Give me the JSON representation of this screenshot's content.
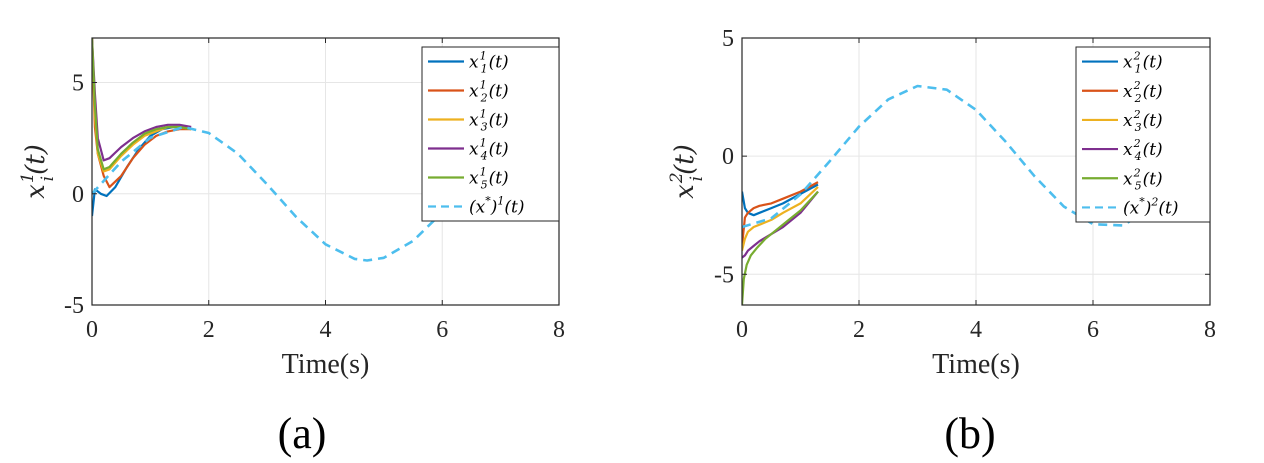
{
  "chart_data": [
    {
      "type": "line",
      "panel_label": "(a)",
      "xlabel": "Time(s)",
      "ylabel": {
        "base": "x",
        "sub": "i",
        "sup": "1",
        "arg": "(t)"
      },
      "xlim": [
        0,
        8
      ],
      "ylim": [
        -5,
        7
      ],
      "xticks": [
        "0",
        "2",
        "4",
        "6",
        "8"
      ],
      "yticks": [
        "-5",
        "0",
        "5"
      ],
      "grid": true,
      "legend_position": "top-right",
      "series": [
        {
          "name": "x_1^1(t)",
          "label": {
            "base": "x",
            "sub": "1",
            "sup": "1",
            "arg": "(t)"
          },
          "color": "#0072BD",
          "style": "solid",
          "x": [
            0,
            0.05,
            0.15,
            0.25,
            0.4,
            0.6,
            0.8,
            1.0,
            1.2,
            1.4,
            1.6
          ],
          "y": [
            -1.0,
            0.2,
            0.0,
            -0.1,
            0.3,
            1.2,
            2.0,
            2.6,
            2.9,
            3.0,
            3.0
          ]
        },
        {
          "name": "x_2^1(t)",
          "label": {
            "base": "x",
            "sub": "2",
            "sup": "1",
            "arg": "(t)"
          },
          "color": "#D95319",
          "style": "solid",
          "x": [
            0,
            0.05,
            0.1,
            0.2,
            0.3,
            0.5,
            0.7,
            0.9,
            1.1,
            1.3,
            1.5,
            1.7
          ],
          "y": [
            7.0,
            3.0,
            1.8,
            0.8,
            0.3,
            0.8,
            1.6,
            2.2,
            2.6,
            2.8,
            2.9,
            2.9
          ]
        },
        {
          "name": "x_3^1(t)",
          "label": {
            "base": "x",
            "sub": "3",
            "sup": "1",
            "arg": "(t)"
          },
          "color": "#EDB120",
          "style": "solid",
          "x": [
            0,
            0.05,
            0.1,
            0.2,
            0.3,
            0.5,
            0.7,
            0.9,
            1.1,
            1.3,
            1.5,
            1.7
          ],
          "y": [
            7.0,
            3.5,
            1.8,
            1.0,
            1.1,
            1.7,
            2.2,
            2.6,
            2.8,
            3.0,
            3.0,
            2.9
          ]
        },
        {
          "name": "x_4^1(t)",
          "label": {
            "base": "x",
            "sub": "4",
            "sup": "1",
            "arg": "(t)"
          },
          "color": "#7E2F8E",
          "style": "solid",
          "x": [
            0,
            0.05,
            0.1,
            0.2,
            0.3,
            0.5,
            0.7,
            0.9,
            1.1,
            1.3,
            1.5,
            1.7
          ],
          "y": [
            7.0,
            4.5,
            2.5,
            1.5,
            1.6,
            2.1,
            2.5,
            2.8,
            3.0,
            3.1,
            3.1,
            3.0
          ]
        },
        {
          "name": "x_5^1(t)",
          "label": {
            "base": "x",
            "sub": "5",
            "sup": "1",
            "arg": "(t)"
          },
          "color": "#77AC30",
          "style": "solid",
          "x": [
            0,
            0.05,
            0.1,
            0.2,
            0.3,
            0.5,
            0.7,
            0.9,
            1.1,
            1.3,
            1.5,
            1.7
          ],
          "y": [
            7.0,
            4.0,
            2.0,
            1.1,
            1.2,
            1.8,
            2.3,
            2.7,
            2.9,
            3.0,
            3.0,
            2.9
          ]
        },
        {
          "name": "(x*)^1(t)",
          "label": {
            "base": "(x",
            "sup": "*",
            "after": ")",
            "sup2": "1",
            "arg": "(t)"
          },
          "color": "#4DBEEE",
          "style": "dashed",
          "x": [
            0,
            0.5,
            1.0,
            1.571,
            2.0,
            2.5,
            3.0,
            3.5,
            4.0,
            4.5,
            4.712,
            5.0,
            5.5,
            6.0,
            6.5,
            7.0,
            7.5,
            7.854,
            8.0
          ],
          "y": [
            0,
            1.44,
            2.52,
            3.0,
            2.73,
            1.8,
            0.42,
            -1.05,
            -2.27,
            -2.93,
            -3.0,
            -2.88,
            -2.12,
            -0.84,
            0.64,
            1.97,
            2.81,
            3.0,
            2.97
          ]
        }
      ]
    },
    {
      "type": "line",
      "panel_label": "(b)",
      "xlabel": "Time(s)",
      "ylabel": {
        "base": "x",
        "sub": "i",
        "sup": "2",
        "arg": "(t)"
      },
      "xlim": [
        0,
        8
      ],
      "ylim": [
        -6.3,
        5
      ],
      "xticks": [
        "0",
        "2",
        "4",
        "6",
        "8"
      ],
      "yticks": [
        "-5",
        "0",
        "5"
      ],
      "grid": true,
      "legend_position": "top-right",
      "series": [
        {
          "name": "x_1^2(t)",
          "label": {
            "base": "x",
            "sub": "1",
            "sup": "2",
            "arg": "(t)"
          },
          "color": "#0072BD",
          "style": "solid",
          "x": [
            0,
            0.05,
            0.1,
            0.2,
            0.3,
            0.5,
            0.7,
            1.0,
            1.3
          ],
          "y": [
            -1.5,
            -2.2,
            -2.4,
            -2.5,
            -2.4,
            -2.2,
            -2.0,
            -1.6,
            -1.2
          ]
        },
        {
          "name": "x_2^2(t)",
          "label": {
            "base": "x",
            "sub": "2",
            "sup": "2",
            "arg": "(t)"
          },
          "color": "#D95319",
          "style": "solid",
          "x": [
            0,
            0.05,
            0.1,
            0.2,
            0.3,
            0.5,
            0.7,
            1.0,
            1.3
          ],
          "y": [
            -3.8,
            -2.6,
            -2.4,
            -2.2,
            -2.1,
            -2.0,
            -1.8,
            -1.5,
            -1.1
          ]
        },
        {
          "name": "x_3^2(t)",
          "label": {
            "base": "x",
            "sub": "3",
            "sup": "2",
            "arg": "(t)"
          },
          "color": "#EDB120",
          "style": "solid",
          "x": [
            0,
            0.05,
            0.1,
            0.2,
            0.3,
            0.5,
            0.7,
            1.0,
            1.3
          ],
          "y": [
            -4.0,
            -3.5,
            -3.2,
            -3.0,
            -2.9,
            -2.7,
            -2.4,
            -2.0,
            -1.3
          ]
        },
        {
          "name": "x_4^2(t)",
          "label": {
            "base": "x",
            "sub": "4",
            "sup": "2",
            "arg": "(t)"
          },
          "color": "#7E2F8E",
          "style": "solid",
          "x": [
            0,
            0.05,
            0.1,
            0.2,
            0.3,
            0.5,
            0.7,
            1.0,
            1.3
          ],
          "y": [
            -4.3,
            -4.2,
            -4.0,
            -3.8,
            -3.6,
            -3.3,
            -3.0,
            -2.4,
            -1.5
          ]
        },
        {
          "name": "x_5^2(t)",
          "label": {
            "base": "x",
            "sub": "5",
            "sup": "2",
            "arg": "(t)"
          },
          "color": "#77AC30",
          "style": "solid",
          "x": [
            0,
            0.03,
            0.08,
            0.15,
            0.25,
            0.4,
            0.6,
            0.8,
            1.0,
            1.3
          ],
          "y": [
            -6.3,
            -5.2,
            -4.6,
            -4.2,
            -3.9,
            -3.5,
            -3.1,
            -2.7,
            -2.3,
            -1.5
          ]
        },
        {
          "name": "(x*)^2(t)",
          "label": {
            "base": "(x",
            "sup": "*",
            "after": ")",
            "sup2": "2",
            "arg": "(t)"
          },
          "color": "#4DBEEE",
          "style": "dashed",
          "x": [
            0,
            0.5,
            1.0,
            1.5,
            2.0,
            2.5,
            3.0,
            3.5,
            4.0,
            4.5,
            5.0,
            5.5,
            6.0,
            6.5,
            7.0,
            7.5,
            8.0
          ],
          "y": [
            -3.0,
            -2.63,
            -1.62,
            -0.21,
            1.25,
            2.4,
            2.97,
            2.81,
            1.96,
            0.63,
            -0.85,
            -2.13,
            -2.88,
            -2.93,
            -2.26,
            -1.04,
            0.44
          ]
        }
      ]
    }
  ]
}
